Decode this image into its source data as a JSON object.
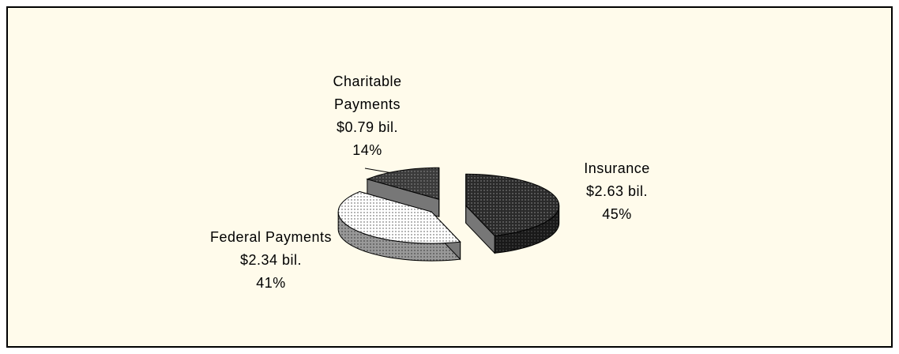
{
  "chart_data": {
    "type": "pie3d",
    "categories": [
      "Insurance",
      "Federal Payments",
      "Charitable Payments"
    ],
    "values": [
      45,
      41,
      14
    ],
    "value_labels": [
      "45%",
      "41%",
      "14%"
    ],
    "amounts": [
      2.63,
      2.34,
      0.79
    ],
    "amount_labels": [
      "$2.63 bil.",
      "$2.34 bil.",
      "$0.79 bil."
    ],
    "colors": [
      "#2a2a2a",
      "#ffffff",
      "#3a3a3a"
    ],
    "exploded": true
  }
}
